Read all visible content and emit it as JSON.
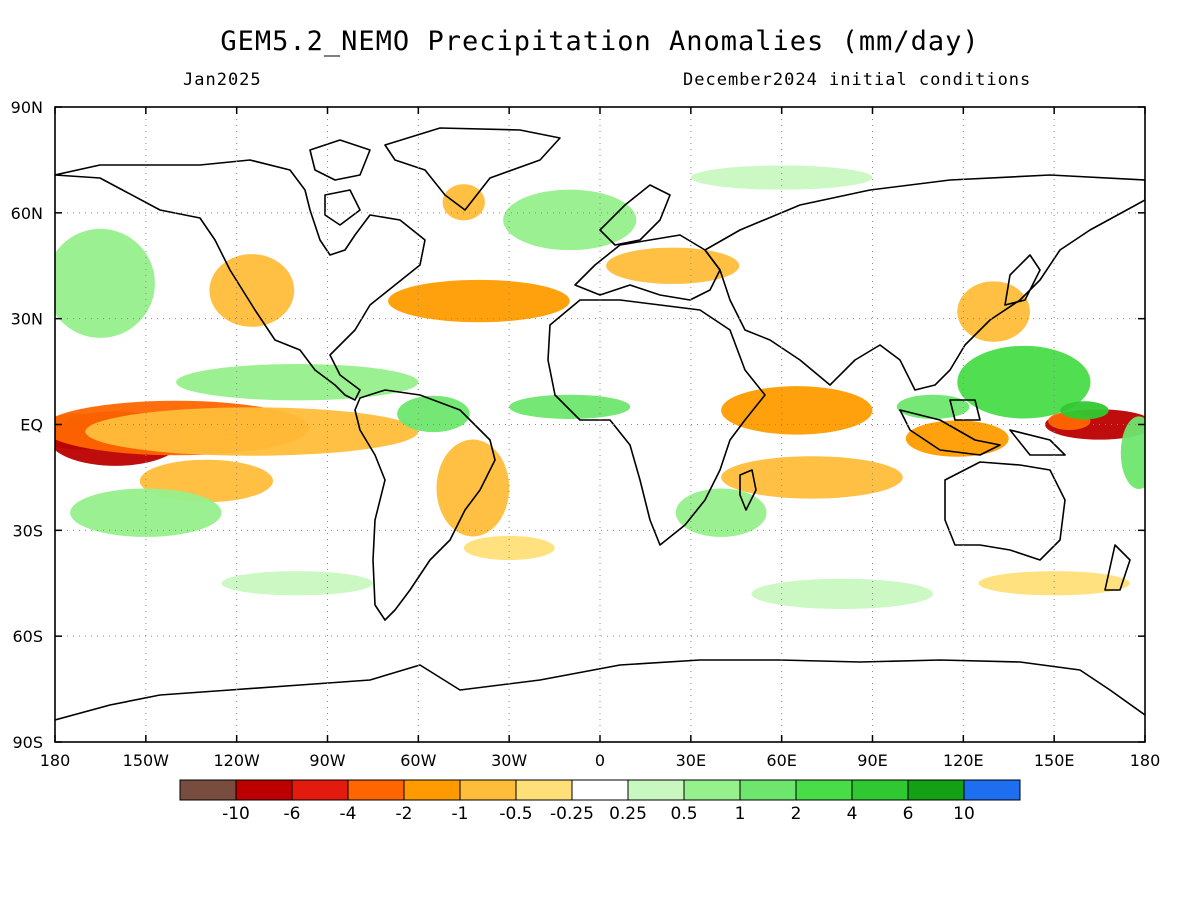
{
  "header": {
    "title": "GEM5.2_NEMO Precipitation Anomalies (mm/day)",
    "period": "Jan2025",
    "init": "December2024 initial conditions"
  },
  "map": {
    "projection": "cylindrical equidistant",
    "lon_range": [
      -180,
      180
    ],
    "lat_range": [
      -90,
      90
    ],
    "lon_ticks": [
      {
        "value": -180,
        "label": "180"
      },
      {
        "value": -150,
        "label": "150W"
      },
      {
        "value": -120,
        "label": "120W"
      },
      {
        "value": -90,
        "label": "90W"
      },
      {
        "value": -60,
        "label": "60W"
      },
      {
        "value": -30,
        "label": "30W"
      },
      {
        "value": 0,
        "label": "0"
      },
      {
        "value": 30,
        "label": "30E"
      },
      {
        "value": 60,
        "label": "60E"
      },
      {
        "value": 90,
        "label": "90E"
      },
      {
        "value": 120,
        "label": "120E"
      },
      {
        "value": 150,
        "label": "150E"
      },
      {
        "value": 180,
        "label": "180"
      }
    ],
    "lat_ticks": [
      {
        "value": 90,
        "label": "90N"
      },
      {
        "value": 60,
        "label": "60N"
      },
      {
        "value": 30,
        "label": "30N"
      },
      {
        "value": 0,
        "label": "EQ"
      },
      {
        "value": -30,
        "label": "30S"
      },
      {
        "value": -60,
        "label": "60S"
      },
      {
        "value": -90,
        "label": "90S"
      }
    ],
    "gridlines": true
  },
  "colorbar": {
    "colors": [
      "#784d3f",
      "#bc0000",
      "#e31a0e",
      "#ff6600",
      "#ff9b00",
      "#ffbd3a",
      "#ffe078",
      "#ffffff",
      "#c8f8c0",
      "#96f08c",
      "#6ee66e",
      "#48dc48",
      "#30c830",
      "#14a014",
      "#1e6ef0"
    ],
    "labels": [
      "-10",
      "-6",
      "-4",
      "-2",
      "-1",
      "-0.5",
      "-0.25",
      "0.25",
      "0.5",
      "1",
      "2",
      "4",
      "6",
      "10"
    ]
  },
  "anomalies": [
    {
      "lon": -172,
      "lat": -2,
      "rx": 14,
      "ry": 6,
      "level": 0
    },
    {
      "lon": -160,
      "lat": -4,
      "rx": 22,
      "ry": 9,
      "level": 1
    },
    {
      "lon": -140,
      "lat": -1,
      "rx": 44,
      "ry": 9,
      "level": 3
    },
    {
      "lon": -115,
      "lat": -2,
      "rx": 55,
      "ry": 8,
      "level": 5
    },
    {
      "lon": -130,
      "lat": -16,
      "rx": 22,
      "ry": 7,
      "level": 5
    },
    {
      "lon": -115,
      "lat": 38,
      "rx": 14,
      "ry": 12,
      "level": 5
    },
    {
      "lon": -40,
      "lat": 35,
      "rx": 30,
      "ry": 7,
      "level": 4
    },
    {
      "lon": -42,
      "lat": -18,
      "rx": 12,
      "ry": 16,
      "level": 5
    },
    {
      "lon": -30,
      "lat": -35,
      "rx": 15,
      "ry": 4,
      "level": 6
    },
    {
      "lon": 24,
      "lat": 45,
      "rx": 22,
      "ry": 6,
      "level": 5
    },
    {
      "lon": -45,
      "lat": 63,
      "rx": 7,
      "ry": 6,
      "level": 5
    },
    {
      "lon": 65,
      "lat": 4,
      "rx": 25,
      "ry": 8,
      "level": 4
    },
    {
      "lon": 70,
      "lat": -15,
      "rx": 30,
      "ry": 7,
      "level": 5
    },
    {
      "lon": 118,
      "lat": -4,
      "rx": 17,
      "ry": 6,
      "level": 4
    },
    {
      "lon": 165,
      "lat": 0,
      "rx": 18,
      "ry": 5,
      "level": 1
    },
    {
      "lon": 155,
      "lat": 1,
      "rx": 7,
      "ry": 3,
      "level": 3
    },
    {
      "lon": 130,
      "lat": 32,
      "rx": 12,
      "ry": 10,
      "level": 5
    },
    {
      "lon": 150,
      "lat": -45,
      "rx": 25,
      "ry": 4,
      "level": 6
    },
    {
      "lon": -165,
      "lat": 40,
      "rx": 18,
      "ry": 18,
      "level": 9
    },
    {
      "lon": -100,
      "lat": 12,
      "rx": 40,
      "ry": 6,
      "level": 9
    },
    {
      "lon": -150,
      "lat": -25,
      "rx": 25,
      "ry": 8,
      "level": 9
    },
    {
      "lon": -10,
      "lat": 5,
      "rx": 20,
      "ry": 4,
      "level": 10
    },
    {
      "lon": -55,
      "lat": 3,
      "rx": 12,
      "ry": 6,
      "level": 10
    },
    {
      "lon": -10,
      "lat": 58,
      "rx": 22,
      "ry": 10,
      "level": 9
    },
    {
      "lon": 40,
      "lat": -25,
      "rx": 15,
      "ry": 8,
      "level": 9
    },
    {
      "lon": 140,
      "lat": 12,
      "rx": 22,
      "ry": 12,
      "level": 11
    },
    {
      "lon": 160,
      "lat": 4,
      "rx": 8,
      "ry": 3,
      "level": 12
    },
    {
      "lon": 110,
      "lat": 5,
      "rx": 12,
      "ry": 4,
      "level": 10
    },
    {
      "lon": 178,
      "lat": -8,
      "rx": 6,
      "ry": 12,
      "level": 10
    },
    {
      "lon": 80,
      "lat": -48,
      "rx": 30,
      "ry": 5,
      "level": 8
    },
    {
      "lon": -100,
      "lat": -45,
      "rx": 25,
      "ry": 4,
      "level": 8
    },
    {
      "lon": 60,
      "lat": 70,
      "rx": 30,
      "ry": 4,
      "level": 8
    }
  ]
}
